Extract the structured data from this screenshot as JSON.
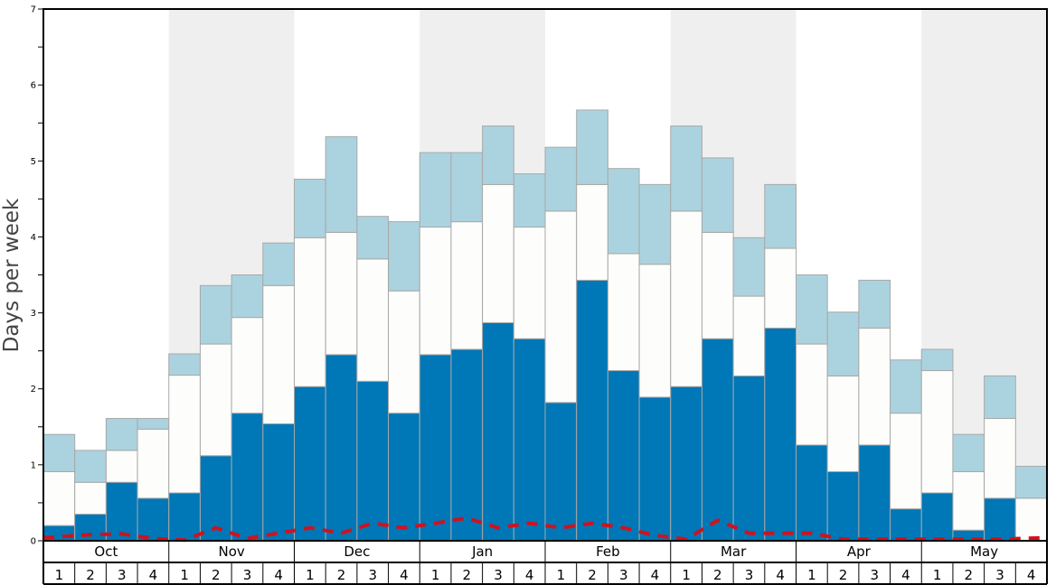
{
  "chart_data": {
    "type": "bar",
    "title": "",
    "xlabel": "",
    "ylabel": "Days per week",
    "ylim": [
      0,
      7
    ],
    "y_ticks": [
      "0",
      "1",
      "2",
      "3",
      "4",
      "5",
      "6",
      "7"
    ],
    "stacked": true,
    "months": [
      "Oct",
      "Nov",
      "Dec",
      "Jan",
      "Feb",
      "Mar",
      "Apr",
      "May"
    ],
    "week_labels": [
      "1",
      "2",
      "3",
      "4"
    ],
    "categories": [
      "Oct 1",
      "Oct 2",
      "Oct 3",
      "Oct 4",
      "Nov 1",
      "Nov 2",
      "Nov 3",
      "Nov 4",
      "Dec 1",
      "Dec 2",
      "Dec 3",
      "Dec 4",
      "Jan 1",
      "Jan 2",
      "Jan 3",
      "Jan 4",
      "Feb 1",
      "Feb 2",
      "Feb 3",
      "Feb 4",
      "Mar 1",
      "Mar 2",
      "Mar 3",
      "Mar 4",
      "Apr 1",
      "Apr 2",
      "Apr 3",
      "Apr 4",
      "May 1",
      "May 2",
      "May 3",
      "May 4"
    ],
    "series": [
      {
        "color": "#0077b6",
        "values": [
          0.2,
          0.35,
          0.77,
          0.56,
          0.63,
          1.12,
          1.68,
          1.54,
          2.03,
          2.45,
          2.1,
          1.68,
          2.45,
          2.52,
          2.87,
          2.66,
          1.82,
          3.43,
          2.24,
          1.89,
          2.03,
          2.66,
          2.17,
          2.8,
          1.26,
          0.91,
          1.26,
          0.42,
          0.63,
          0.14,
          0.56,
          0.0
        ]
      },
      {
        "color": "#fdfdfb",
        "values": [
          0.71,
          0.42,
          0.42,
          0.91,
          1.55,
          1.47,
          1.26,
          1.82,
          1.96,
          1.61,
          1.61,
          1.61,
          1.68,
          1.68,
          1.82,
          1.47,
          2.52,
          1.26,
          1.54,
          1.75,
          2.31,
          1.4,
          1.05,
          1.05,
          1.33,
          1.26,
          1.54,
          1.26,
          1.61,
          0.77,
          1.05,
          0.56
        ]
      },
      {
        "color": "#abd3df",
        "values": [
          0.49,
          0.42,
          0.42,
          0.14,
          0.28,
          0.77,
          0.56,
          0.56,
          0.77,
          1.26,
          0.56,
          0.91,
          0.98,
          0.91,
          0.77,
          0.7,
          0.84,
          0.98,
          1.12,
          1.05,
          1.12,
          0.98,
          0.77,
          0.84,
          0.91,
          0.84,
          0.63,
          0.7,
          0.28,
          0.49,
          0.56,
          0.42
        ]
      }
    ],
    "line_series": {
      "color": "#d0121e",
      "style": "dashed",
      "values": [
        0.04,
        0.08,
        0.09,
        0.03,
        0.01,
        0.17,
        0.03,
        0.1,
        0.17,
        0.1,
        0.23,
        0.17,
        0.23,
        0.3,
        0.17,
        0.23,
        0.17,
        0.23,
        0.17,
        0.07,
        0.02,
        0.27,
        0.1,
        0.1,
        0.1,
        0.02,
        0.02,
        0.02,
        0.02,
        0.02,
        0.02,
        0.04
      ]
    },
    "grid": false,
    "band_colors": {
      "light": "#ffffff",
      "shaded": "#f0eff0"
    }
  }
}
